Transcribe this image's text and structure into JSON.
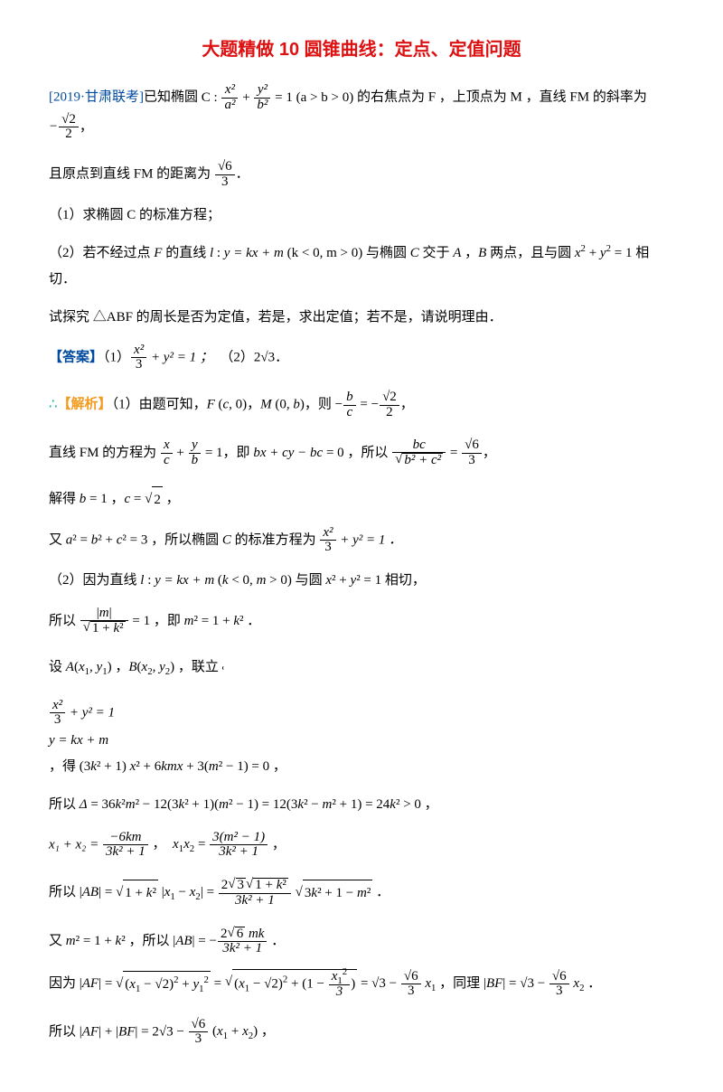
{
  "doc": {
    "title_color": "#d11",
    "src_color": "#004a9f",
    "ans_color": "#004a9f",
    "sol_bullet_color": "#00b28f",
    "sol_label_color": "#f39b1f",
    "font_body_pt": 15,
    "font_title_pt": 20
  },
  "title": "大题精做 10  圆锥曲线：定点、定值问题",
  "source_tag": "[2019·甘肃联考]",
  "p1a": "已知椭圆 ",
  "p1_eq1_lhs": "C :",
  "p1_frac1_num": "x²",
  "p1_frac1_den": "a²",
  "p1_plus": "+",
  "p1_frac2_num": "y²",
  "p1_frac2_den": "b²",
  "p1_eq_rhs": " = 1 (a > b > 0)",
  "p1b": " 的右焦点为 F ，上顶点为 M ，直线 FM 的斜率为 ",
  "p1_slope_num": "√2",
  "p1_slope_den": "2",
  "p1c": "，",
  "p2a": "且原点到直线 FM 的距离为 ",
  "p2_frac_num": "√6",
  "p2_frac_den": "3",
  "p2b": "．",
  "q1": "（1）求椭圆 C 的标准方程；",
  "q2a": "（2）若不经过点 F 的直线 l : y = kx + m (k < 0, m > 0) 与椭圆 C 交于 A ，B 两点，且与圆 x² + y² = 1 相切．",
  "q2b": "试探究 △ABF 的周长是否为定值，若是，求出定值；若不是，请说明理由．",
  "ans_label": "【答案】",
  "ans_1a": "（1）",
  "ans_frac_num": "x²",
  "ans_frac_den": "3",
  "ans_1b": " + y² = 1 ；",
  "ans_2a": "（2）",
  "ans_2_val": "2√3",
  "ans_2b": "．",
  "sol_bullet": "∴",
  "sol_label": "【解析】",
  "s1a": "（1）由题可知，F (c, 0)，M (0, b)，则 ",
  "s1_frac1_num": "b",
  "s1_frac1_den": "c",
  "s1_mid": " = −",
  "s1_frac2_num": "√2",
  "s1_frac2_den": "2",
  "s1b": "，",
  "s2a": "直线 FM 的方程为 ",
  "s2_frac1_num": "x",
  "s2_frac1_den": "c",
  "s2_p": " + ",
  "s2_frac2_num": "y",
  "s2_frac2_den": "b",
  "s2_eq": " = 1",
  "s2b": "，即 bx + cy − bc = 0 ，所以 ",
  "s2_frac3_num": "bc",
  "s2_frac3_den": "√(b² + c²)",
  "s2_eq2": " = ",
  "s2_frac4_num": "√6",
  "s2_frac4_den": "3",
  "s2c": "，",
  "s3": "解得 b = 1 ，c = √2 ，",
  "s4a": "又 a² = b² + c² = 3 ，所以椭圆 C 的标准方程为 ",
  "s4_frac_num": "x²",
  "s4_frac_den": "3",
  "s4b": " + y² = 1 ．",
  "s5": "（2）因为直线 l : y = kx + m (k < 0, m > 0) 与圆 x² + y² = 1 相切，",
  "s6a": "所以 ",
  "s6_frac_num": "|m|",
  "s6_frac_den": "√(1 + k²)",
  "s6b": " = 1 ，即 m² = 1 + k² ．",
  "s7a": "设 A(x₁, y₁) ，B(x₂, y₂) ，联立 ",
  "s7_case_top_num": "x²",
  "s7_case_top_den": "3",
  "s7_case_top_rest": " + y² = 1",
  "s7_case_bot": "y = kx + m",
  "s7b": "，得 (3k² + 1) x² + 6kmx + 3(m² − 1) = 0 ，",
  "s8": "所以 Δ = 36k²m² − 12(3k² + 1)(m² − 1) = 12(3k² − m² + 1) = 24k² > 0 ，",
  "s9_x12_num": "−6km",
  "s9_x12_den": "3k² + 1",
  "s9_mid": " ，  x₁x₂ = ",
  "s9_xx_num": "3(m² − 1)",
  "s9_xx_den": "3k² + 1",
  "s9_end": " ，",
  "s9_lead": "x₁ + x₂ = ",
  "s10a": "所以 |AB| = ",
  "s10_sqrt1": "√(1 + k²)",
  "s10_mid1": " |x₁ − x₂| = ",
  "s10_frac_num": "2√3 · √(1 + k²)",
  "s10_frac_den": "3k² + 1",
  "s10_sqrt2": " √(3k² + 1 − m²)",
  "s10b": " ．",
  "s11a": "又 m² = 1 + k² ，所以 |AB| = −",
  "s11_frac_num": "2√6 mk",
  "s11_frac_den": "3k² + 1",
  "s11b": " ．",
  "s12a": "因为 |AF| = ",
  "s12_sqrt1_body": "(x₁ − √2)² + y₁²",
  "s12_eq": " = ",
  "s12_sqrt2_a": "(x₁ − √2)²",
  "s12_sqrt2_b_num": "x₁²",
  "s12_sqrt2_b_den": "3",
  "s12_eq2": " = √3 − ",
  "s12_frac_num": "√6",
  "s12_frac_den": "3",
  "s12_mid": " x₁ ，同理 |BF| = √3 − ",
  "s12_frac2_num": "√6",
  "s12_frac2_den": "3",
  "s12_end": " x₂ ．",
  "s13a": "所以 |AF| + |BF| = 2√3 − ",
  "s13_frac_num": "√6",
  "s13_frac_den": "3",
  "s13b": " (x₁ + x₂) ，"
}
